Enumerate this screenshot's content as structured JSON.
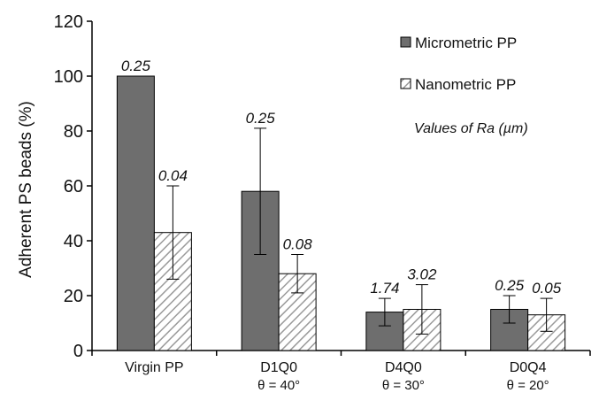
{
  "chart_data": {
    "type": "bar",
    "ylabel": "Adherent PS beads (%)",
    "ylim": [
      0,
      120
    ],
    "yticks": [
      0,
      20,
      40,
      60,
      80,
      100,
      120
    ],
    "categories": [
      "Virgin PP",
      "D1Q0",
      "D4Q0",
      "D0Q4"
    ],
    "category_sublabels": [
      "",
      "θ = 40°",
      "θ = 30°",
      "θ = 20°"
    ],
    "series": [
      {
        "name": "Micrometric PP",
        "color": "#6e6e6e",
        "values": [
          100,
          58,
          14,
          15
        ],
        "error": [
          0,
          23,
          5,
          5
        ],
        "labels": [
          "0.25",
          "0.25",
          "1.74",
          "0.25"
        ]
      },
      {
        "name": "Nanometric PP",
        "color": "#ffffff",
        "pattern": "diagonal-hatch",
        "values": [
          43,
          28,
          15,
          13
        ],
        "error": [
          17,
          7,
          9,
          6
        ],
        "labels": [
          "0.04",
          "0.08",
          "3.02",
          "0.05"
        ]
      }
    ],
    "legend_position": "top-right",
    "legend_note": "Values of Ra (µm)",
    "grid": false
  }
}
